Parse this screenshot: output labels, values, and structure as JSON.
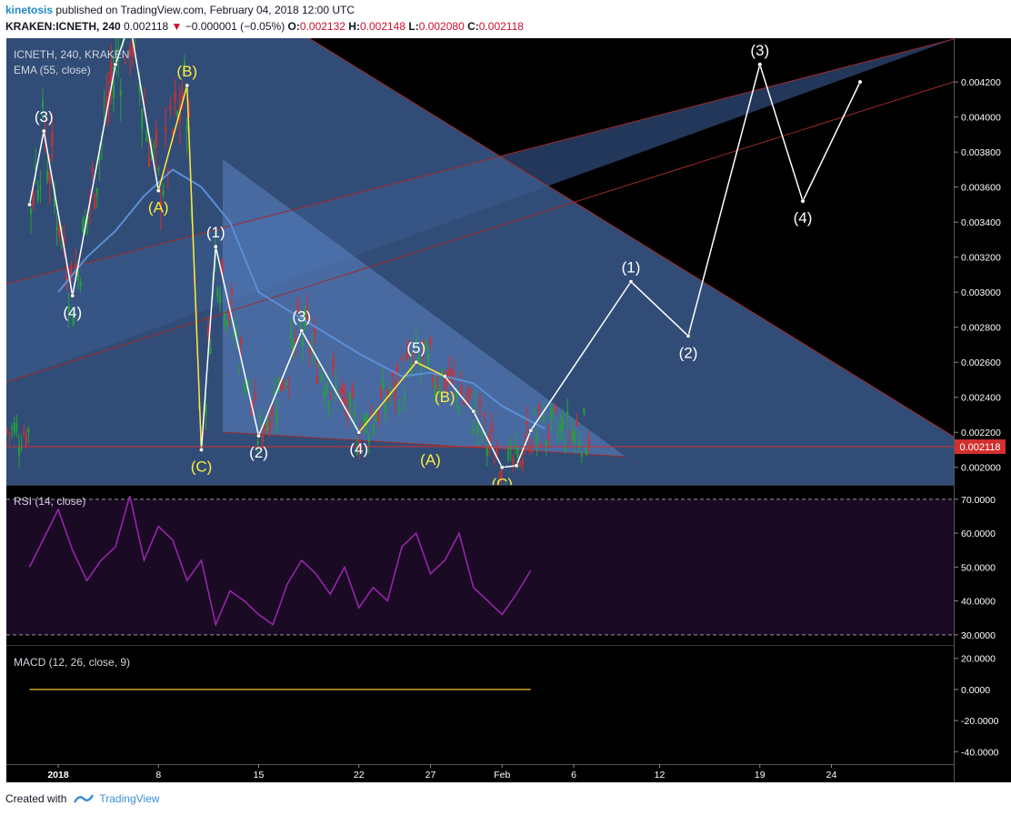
{
  "header": {
    "author": "kinetosis",
    "published_text": "published on TradingView.com, February 04, 2018 12:00 UTC",
    "symbol": "KRAKEN:ICNETH, 240",
    "last": "0.002118",
    "change": "−0.000001 (−0.05%)",
    "o_label": "O:",
    "o": "0.002132",
    "h_label": "H:",
    "h": "0.002148",
    "l_label": "L:",
    "l": "0.002080",
    "c_label": "C:",
    "c": "0.002118"
  },
  "footer": {
    "created_with": "Created with",
    "brand": "TradingView"
  },
  "colors": {
    "background": "#000000",
    "wedge": "#3a5a8c",
    "channel": "#2f4a78",
    "ema": "#5b8fd6",
    "wave_white": "#ffffff",
    "wave_yellow": "#ffeb3b",
    "rsi": "#9c27b0",
    "rsi_band": "#1a0a24",
    "candle_up": "#26a03a",
    "candle_down": "#d32f2f",
    "price_tag": "#d32f2f",
    "trendline": "#9e2a2a"
  },
  "chart_data": [
    {
      "type": "line",
      "panel": "price",
      "title": "ICNETH, 240, KRAKEN",
      "indicator_label": "EMA (55, close)",
      "y_axis_ticks": [
        "0.002000",
        "0.002200",
        "0.002400",
        "0.002600",
        "0.002800",
        "0.003000",
        "0.003200",
        "0.003400",
        "0.003600",
        "0.003800",
        "0.004000",
        "0.004200"
      ],
      "ylim": [
        0.0019,
        0.00445
      ],
      "x_axis_ticks": [
        "2018",
        "8",
        "15",
        "22",
        "27",
        "Feb",
        "6",
        "12",
        "19",
        "24"
      ],
      "last_price_label": "0.002118",
      "last_price": 0.002118,
      "series": [
        {
          "name": "EMA (55, close)",
          "x": [
            "2018-01-01",
            "2018-01-03",
            "2018-01-05",
            "2018-01-07",
            "2018-01-09",
            "2018-01-11",
            "2018-01-13",
            "2018-01-15",
            "2018-01-18",
            "2018-01-22",
            "2018-01-25",
            "2018-01-27",
            "2018-01-30",
            "2018-02-01",
            "2018-02-04"
          ],
          "y": [
            0.003,
            0.0032,
            0.00335,
            0.00355,
            0.0037,
            0.0036,
            0.0034,
            0.003,
            0.00285,
            0.00265,
            0.00252,
            0.00254,
            0.00248,
            0.00235,
            0.00222
          ]
        },
        {
          "name": "Elliott wave count",
          "x": [
            "2017-12-30",
            "2017-12-31",
            "2018-01-02",
            "2018-01-05",
            "2018-01-06",
            "2018-01-08",
            "2018-01-10",
            "2018-01-11",
            "2018-01-12",
            "2018-01-15",
            "2018-01-18",
            "2018-01-22",
            "2018-01-26",
            "2018-01-28",
            "2018-01-30",
            "2018-02-01",
            "2018-02-02",
            "2018-02-03",
            "2018-02-10",
            "2018-02-14",
            "2018-02-19",
            "2018-02-22",
            "2018-02-26"
          ],
          "y": [
            0.0035,
            0.00392,
            0.00298,
            0.0043,
            0.00454,
            0.00358,
            0.00418,
            0.0021,
            0.00326,
            0.00218,
            0.00278,
            0.0022,
            0.0026,
            0.00252,
            0.00232,
            0.002,
            0.00201,
            0.00221,
            0.00306,
            0.00275,
            0.0043,
            0.00352,
            0.0042
          ]
        }
      ],
      "wave_labels": [
        {
          "text": "(3)",
          "x": "2017-12-31",
          "y": 0.00392,
          "color": "white"
        },
        {
          "text": "(4)",
          "x": "2018-01-02",
          "y": 0.00298,
          "color": "white"
        },
        {
          "text": "(B)",
          "x": "2018-01-10",
          "y": 0.00418,
          "color": "yellow"
        },
        {
          "text": "(A)",
          "x": "2018-01-08",
          "y": 0.00358,
          "color": "yellow"
        },
        {
          "text": "(1)",
          "x": "2018-01-12",
          "y": 0.00326,
          "color": "white"
        },
        {
          "text": "(C)",
          "x": "2018-01-11",
          "y": 0.0021,
          "color": "yellow"
        },
        {
          "text": "(2)",
          "x": "2018-01-15",
          "y": 0.00218,
          "color": "white"
        },
        {
          "text": "(3)",
          "x": "2018-01-18",
          "y": 0.00278,
          "color": "white"
        },
        {
          "text": "(4)",
          "x": "2018-01-22",
          "y": 0.0022,
          "color": "white"
        },
        {
          "text": "(5)",
          "x": "2018-01-26",
          "y": 0.0026,
          "color": "white"
        },
        {
          "text": "(B)",
          "x": "2018-01-28",
          "y": 0.00232,
          "color": "yellow"
        },
        {
          "text": "(A)",
          "x": "2018-01-27",
          "y": 0.00214,
          "color": "yellow"
        },
        {
          "text": "(C)",
          "x": "2018-02-01",
          "y": 0.002,
          "color": "yellow"
        },
        {
          "text": "(1)",
          "x": "2018-02-10",
          "y": 0.00306,
          "color": "white"
        },
        {
          "text": "(2)",
          "x": "2018-02-14",
          "y": 0.00275,
          "color": "white"
        },
        {
          "text": "(3)",
          "x": "2018-02-19",
          "y": 0.0043,
          "color": "white"
        },
        {
          "text": "(4)",
          "x": "2018-02-22",
          "y": 0.00352,
          "color": "white"
        }
      ]
    },
    {
      "type": "line",
      "panel": "rsi",
      "title": "RSI (14, close)",
      "y_axis_ticks": [
        "70.0000",
        "60.0000",
        "50.0000",
        "40.0000",
        "30.0000"
      ],
      "ylim": [
        27,
        74
      ],
      "levels": [
        70,
        30
      ],
      "series": [
        {
          "name": "RSI (14, close)",
          "x": [
            "2017-12-30",
            "2018-01-01",
            "2018-01-02",
            "2018-01-03",
            "2018-01-04",
            "2018-01-05",
            "2018-01-06",
            "2018-01-07",
            "2018-01-08",
            "2018-01-09",
            "2018-01-10",
            "2018-01-11",
            "2018-01-12",
            "2018-01-13",
            "2018-01-14",
            "2018-01-15",
            "2018-01-16",
            "2018-01-17",
            "2018-01-18",
            "2018-01-19",
            "2018-01-20",
            "2018-01-21",
            "2018-01-22",
            "2018-01-23",
            "2018-01-24",
            "2018-01-25",
            "2018-01-26",
            "2018-01-27",
            "2018-01-28",
            "2018-01-29",
            "2018-01-30",
            "2018-01-31",
            "2018-02-01",
            "2018-02-02",
            "2018-02-03"
          ],
          "y": [
            50,
            67,
            55,
            46,
            52,
            56,
            71,
            52,
            62,
            58,
            46,
            52,
            33,
            43,
            40,
            36,
            33,
            45,
            52,
            48,
            42,
            50,
            38,
            44,
            40,
            56,
            60,
            48,
            52,
            60,
            44,
            40,
            36,
            42,
            49
          ]
        }
      ]
    },
    {
      "type": "line",
      "panel": "macd",
      "title": "MACD (12, 26, close, 9)",
      "y_axis_ticks": [
        "20.0000",
        "0.0000",
        "-20.0000",
        "-40.0000"
      ],
      "ylim": [
        -48,
        28
      ],
      "series": [
        {
          "name": "MACD (12, 26, close, 9)",
          "x": [
            "2017-12-30",
            "2018-02-03"
          ],
          "y": [
            0,
            0
          ]
        }
      ]
    }
  ]
}
